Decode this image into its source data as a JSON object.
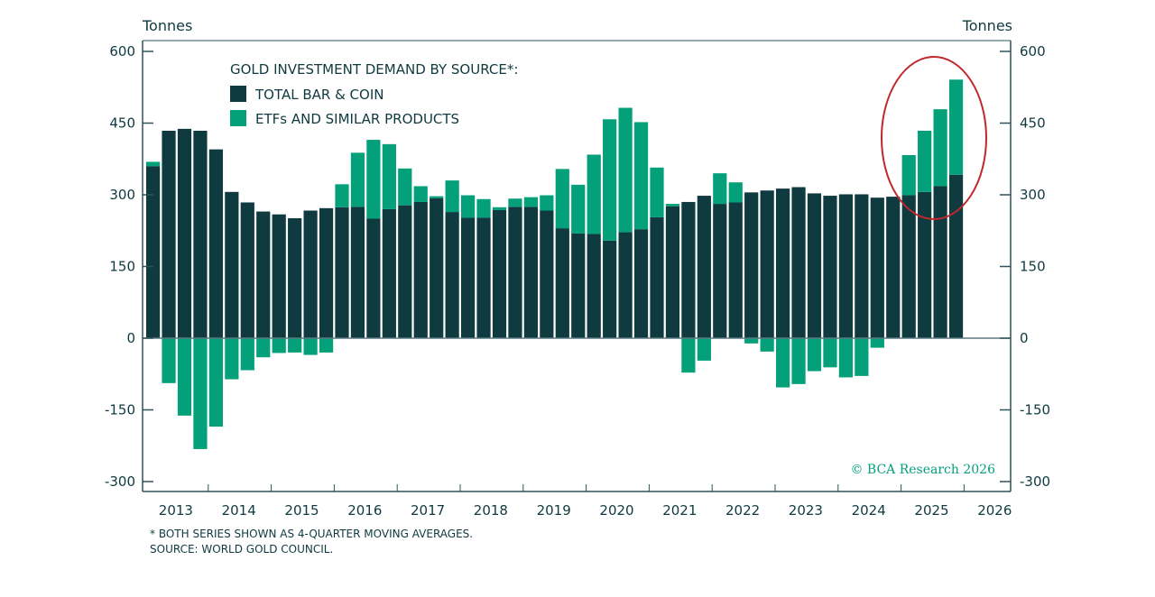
{
  "chart_data": {
    "type": "bar",
    "stacked": true,
    "title": "GOLD INVESTMENT DEMAND BY SOURCE*:",
    "ylabel_left": "Tonnes",
    "ylabel_right": "Tonnes",
    "ylim": [
      -320,
      600
    ],
    "yticks": [
      -300,
      -150,
      0,
      150,
      300,
      450,
      600
    ],
    "xtick_labels": [
      "2013",
      "2014",
      "2015",
      "2016",
      "2017",
      "2018",
      "2019",
      "2020",
      "2021",
      "2022",
      "2023",
      "2024",
      "2025",
      "2026"
    ],
    "x_start": "2013 Q1",
    "frequency": "quarterly",
    "legend_placement": "top-left",
    "series": [
      {
        "name": "TOTAL BAR & COIN",
        "color": "#0f3a40",
        "values": [
          360,
          434,
          438,
          434,
          395,
          306,
          284,
          265,
          259,
          251,
          267,
          272,
          274,
          275,
          250,
          270,
          278,
          285,
          293,
          264,
          252,
          252,
          268,
          275,
          275,
          267,
          230,
          219,
          218,
          204,
          222,
          228,
          253,
          276,
          285,
          298,
          281,
          284,
          305,
          309,
          313,
          316,
          303,
          298,
          301,
          301,
          294,
          296,
          299,
          306,
          318,
          342
        ]
      },
      {
        "name": "ETFs AND SIMILAR PRODUCTS",
        "color": "#03a07a",
        "values": [
          9,
          -94,
          -162,
          -232,
          -185,
          -86,
          -67,
          -40,
          -31,
          -30,
          -35,
          -30,
          48,
          113,
          165,
          136,
          77,
          33,
          4,
          66,
          47,
          39,
          6,
          17,
          20,
          32,
          124,
          102,
          166,
          254,
          260,
          224,
          104,
          5,
          -72,
          -47,
          64,
          42,
          -11,
          -28,
          -103,
          -96,
          -69,
          -61,
          -82,
          -79,
          -20,
          0,
          84,
          128,
          161,
          199
        ]
      }
    ],
    "annotation": "red ellipse highlighting 2025 quarters",
    "annotation_color": "#c0282d",
    "footnote": "* BOTH SERIES SHOWN AS 4-QUARTER MOVING AVERAGES.",
    "source": "SOURCE: WORLD GOLD COUNCIL.",
    "copyright": "© BCA Research 2026"
  }
}
